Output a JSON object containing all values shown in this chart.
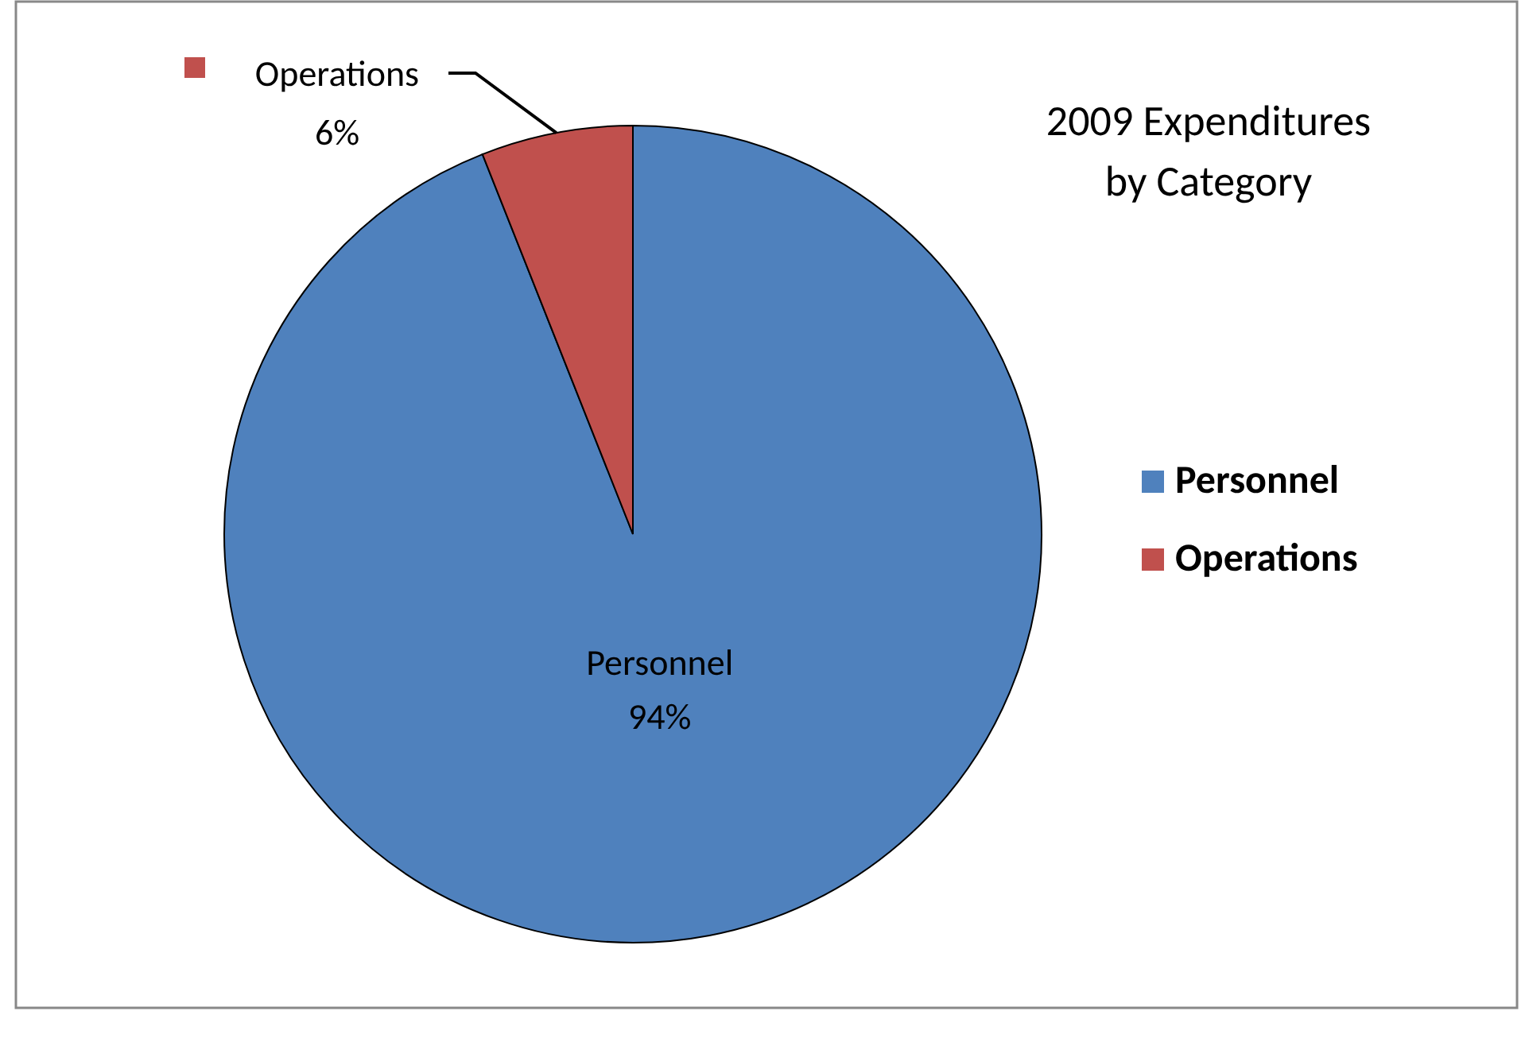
{
  "chart_data": {
    "type": "pie",
    "title": "2009 Expenditures by Category",
    "categories": [
      "Personnel",
      "Operations"
    ],
    "values": [
      94,
      6
    ],
    "colors": [
      "#4f81bd",
      "#c0504d"
    ],
    "value_labels": [
      "94%",
      "6%"
    ],
    "legend": "right"
  }
}
